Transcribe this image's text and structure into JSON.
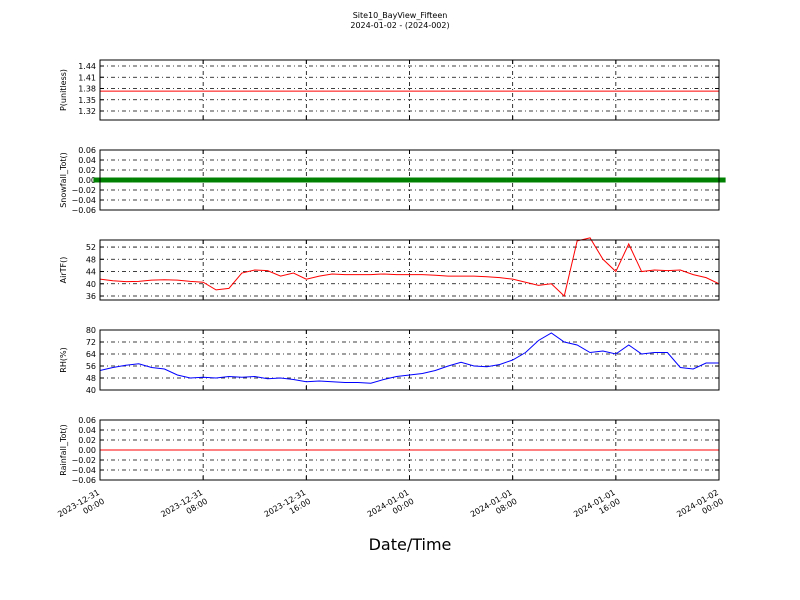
{
  "title": "Site10_BayView_Fifteen",
  "subtitle": "2024-01-02 - (2024-002)",
  "xlabel": "Date/Time",
  "chart_data": [
    {
      "type": "line",
      "ylabel": "P(unitless)",
      "xlim": [
        "2023-12-31 00:00",
        "2024-01-02 00:00"
      ],
      "ylim": [
        1.296,
        1.456
      ],
      "yticks": [
        1.32,
        1.35,
        1.38,
        1.41,
        1.44
      ],
      "grid": true,
      "series": [
        {
          "color": "#ff0000",
          "x": [
            "2023-12-31 00:00",
            "2024-01-02 00:00"
          ],
          "values": [
            1.373,
            1.373
          ]
        }
      ]
    },
    {
      "type": "scatter",
      "ylabel": "Snowfall_Tot()",
      "xlim": [
        "2023-12-31 00:00",
        "2024-01-02 00:00"
      ],
      "ylim": [
        -0.06,
        0.06
      ],
      "yticks": [
        {
          "value": -0.06,
          "label": "−0.06"
        },
        {
          "value": -0.04,
          "label": "−0.04"
        },
        {
          "value": -0.02,
          "label": "−0.02"
        },
        {
          "value": 0,
          "label": "0.00"
        },
        0.02,
        0.04,
        0.06
      ],
      "grid": true,
      "series": [
        {
          "color": "#008000",
          "x": [
            "2023-12-31 00:00",
            "2023-12-31 01:00",
            "2023-12-31 02:00",
            "2023-12-31 03:00",
            "2023-12-31 04:00",
            "2023-12-31 05:00",
            "2023-12-31 06:00",
            "2023-12-31 07:00",
            "2023-12-31 08:00",
            "2023-12-31 09:00",
            "2023-12-31 10:00",
            "2023-12-31 11:00",
            "2023-12-31 12:00",
            "2023-12-31 13:00",
            "2023-12-31 14:00",
            "2023-12-31 15:00",
            "2023-12-31 16:00",
            "2023-12-31 17:00",
            "2023-12-31 18:00",
            "2023-12-31 19:00",
            "2023-12-31 20:00",
            "2023-12-31 21:00",
            "2023-12-31 22:00",
            "2023-12-31 23:00",
            "2024-01-01 00:00",
            "2024-01-01 01:00",
            "2024-01-01 02:00",
            "2024-01-01 03:00",
            "2024-01-01 04:00",
            "2024-01-01 05:00",
            "2024-01-01 06:00",
            "2024-01-01 07:00",
            "2024-01-01 08:00",
            "2024-01-01 09:00",
            "2024-01-01 10:00",
            "2024-01-01 11:00",
            "2024-01-01 12:00",
            "2024-01-01 13:00",
            "2024-01-01 14:00",
            "2024-01-01 15:00",
            "2024-01-01 16:00",
            "2024-01-01 17:00",
            "2024-01-01 18:00",
            "2024-01-01 19:00",
            "2024-01-01 20:00",
            "2024-01-01 21:00",
            "2024-01-01 22:00",
            "2024-01-01 23:00",
            "2024-01-02 00:00"
          ],
          "values": [
            0,
            0,
            0,
            0,
            0,
            0,
            0,
            0,
            0,
            0,
            0,
            0,
            0,
            0,
            0,
            0,
            0,
            0,
            0,
            0,
            0,
            0,
            0,
            0,
            0,
            0,
            0,
            0,
            0,
            0,
            0,
            0,
            0,
            0,
            0,
            0,
            0,
            0,
            0,
            0,
            0,
            0,
            0,
            0,
            0,
            0,
            0,
            0,
            0
          ]
        }
      ]
    },
    {
      "type": "line",
      "ylabel": "AirTF()",
      "xlim": [
        "2023-12-31 00:00",
        "2024-01-02 00:00"
      ],
      "ylim": [
        34.7,
        54.3
      ],
      "yticks": [
        36,
        40,
        44,
        48,
        52
      ],
      "grid": true,
      "series": [
        {
          "color": "#ff0000",
          "x": [
            "2023-12-31 00:00",
            "2023-12-31 01:00",
            "2023-12-31 02:00",
            "2023-12-31 03:00",
            "2023-12-31 04:00",
            "2023-12-31 05:00",
            "2023-12-31 06:00",
            "2023-12-31 07:00",
            "2023-12-31 08:00",
            "2023-12-31 09:00",
            "2023-12-31 10:00",
            "2023-12-31 11:00",
            "2023-12-31 12:00",
            "2023-12-31 13:00",
            "2023-12-31 14:00",
            "2023-12-31 15:00",
            "2023-12-31 16:00",
            "2023-12-31 17:00",
            "2023-12-31 18:00",
            "2023-12-31 19:00",
            "2023-12-31 20:00",
            "2023-12-31 21:00",
            "2023-12-31 22:00",
            "2023-12-31 23:00",
            "2024-01-01 00:00",
            "2024-01-01 01:00",
            "2024-01-01 02:00",
            "2024-01-01 03:00",
            "2024-01-01 04:00",
            "2024-01-01 05:00",
            "2024-01-01 06:00",
            "2024-01-01 07:00",
            "2024-01-01 08:00",
            "2024-01-01 09:00",
            "2024-01-01 10:00",
            "2024-01-01 11:00",
            "2024-01-01 12:00",
            "2024-01-01 13:00",
            "2024-01-01 14:00",
            "2024-01-01 15:00",
            "2024-01-01 16:00",
            "2024-01-01 17:00",
            "2024-01-01 18:00",
            "2024-01-01 19:00",
            "2024-01-01 20:00",
            "2024-01-01 21:00",
            "2024-01-01 22:00",
            "2024-01-01 23:00",
            "2024-01-02 00:00"
          ],
          "values": [
            41.5,
            41,
            40.7,
            40.8,
            41.2,
            41.3,
            41.2,
            40.8,
            40.5,
            38,
            38.5,
            43.5,
            44.5,
            44.3,
            42.5,
            43.5,
            41.5,
            42.5,
            43.2,
            43,
            43,
            43,
            43.2,
            43,
            43,
            43,
            42.8,
            42.5,
            42.5,
            42.5,
            42.3,
            42,
            41.5,
            40.5,
            39.5,
            40,
            36,
            54,
            55,
            48,
            44,
            53,
            44,
            44.5,
            44.3,
            44.5,
            43,
            42,
            40
          ]
        }
      ]
    },
    {
      "type": "line",
      "ylabel": "RH(%)",
      "xlim": [
        "2023-12-31 00:00",
        "2024-01-02 00:00"
      ],
      "ylim": [
        40,
        80
      ],
      "yticks": [
        40,
        48,
        56,
        64,
        72,
        80
      ],
      "grid": true,
      "series": [
        {
          "color": "#0000ff",
          "x": [
            "2023-12-31 00:00",
            "2023-12-31 01:00",
            "2023-12-31 02:00",
            "2023-12-31 03:00",
            "2023-12-31 04:00",
            "2023-12-31 05:00",
            "2023-12-31 06:00",
            "2023-12-31 07:00",
            "2023-12-31 08:00",
            "2023-12-31 09:00",
            "2023-12-31 10:00",
            "2023-12-31 11:00",
            "2023-12-31 12:00",
            "2023-12-31 13:00",
            "2023-12-31 14:00",
            "2023-12-31 15:00",
            "2023-12-31 16:00",
            "2023-12-31 17:00",
            "2023-12-31 18:00",
            "2023-12-31 19:00",
            "2023-12-31 20:00",
            "2023-12-31 21:00",
            "2023-12-31 22:00",
            "2023-12-31 23:00",
            "2024-01-01 00:00",
            "2024-01-01 01:00",
            "2024-01-01 02:00",
            "2024-01-01 03:00",
            "2024-01-01 04:00",
            "2024-01-01 05:00",
            "2024-01-01 06:00",
            "2024-01-01 07:00",
            "2024-01-01 08:00",
            "2024-01-01 09:00",
            "2024-01-01 10:00",
            "2024-01-01 11:00",
            "2024-01-01 12:00",
            "2024-01-01 13:00",
            "2024-01-01 14:00",
            "2024-01-01 15:00",
            "2024-01-01 16:00",
            "2024-01-01 17:00",
            "2024-01-01 18:00",
            "2024-01-01 19:00",
            "2024-01-01 20:00",
            "2024-01-01 21:00",
            "2024-01-01 22:00",
            "2024-01-01 23:00",
            "2024-01-02 00:00"
          ],
          "values": [
            53,
            55,
            56.5,
            57.5,
            55,
            54,
            50,
            48,
            48.5,
            48,
            49,
            48.5,
            49,
            47.5,
            48,
            47,
            45.5,
            46,
            45.5,
            45,
            45,
            44.5,
            47,
            49,
            50,
            51,
            53,
            56,
            58.5,
            56,
            55.5,
            57,
            60,
            65,
            73,
            78,
            72,
            70,
            65,
            66,
            64,
            70,
            64,
            65,
            65,
            55,
            54,
            58,
            58
          ]
        }
      ]
    },
    {
      "type": "line",
      "ylabel": "Rainfall_Tot()",
      "xlim": [
        "2023-12-31 00:00",
        "2024-01-02 00:00"
      ],
      "ylim": [
        -0.06,
        0.06
      ],
      "yticks": [
        {
          "value": -0.06,
          "label": "−0.06"
        },
        {
          "value": -0.04,
          "label": "−0.04"
        },
        {
          "value": -0.02,
          "label": "−0.02"
        },
        {
          "value": 0,
          "label": "0.00"
        },
        0.02,
        0.04,
        0.06
      ],
      "grid": true,
      "xticks": [
        "2023-12-31 00:00",
        "2023-12-31 08:00",
        "2023-12-31 16:00",
        "2024-01-01 00:00",
        "2024-01-01 08:00",
        "2024-01-01 16:00",
        "2024-01-02 00:00"
      ],
      "series": [
        {
          "color": "#ff0000",
          "x": [
            "2023-12-31 00:00",
            "2024-01-02 00:00"
          ],
          "values": [
            0,
            0
          ]
        }
      ]
    }
  ]
}
